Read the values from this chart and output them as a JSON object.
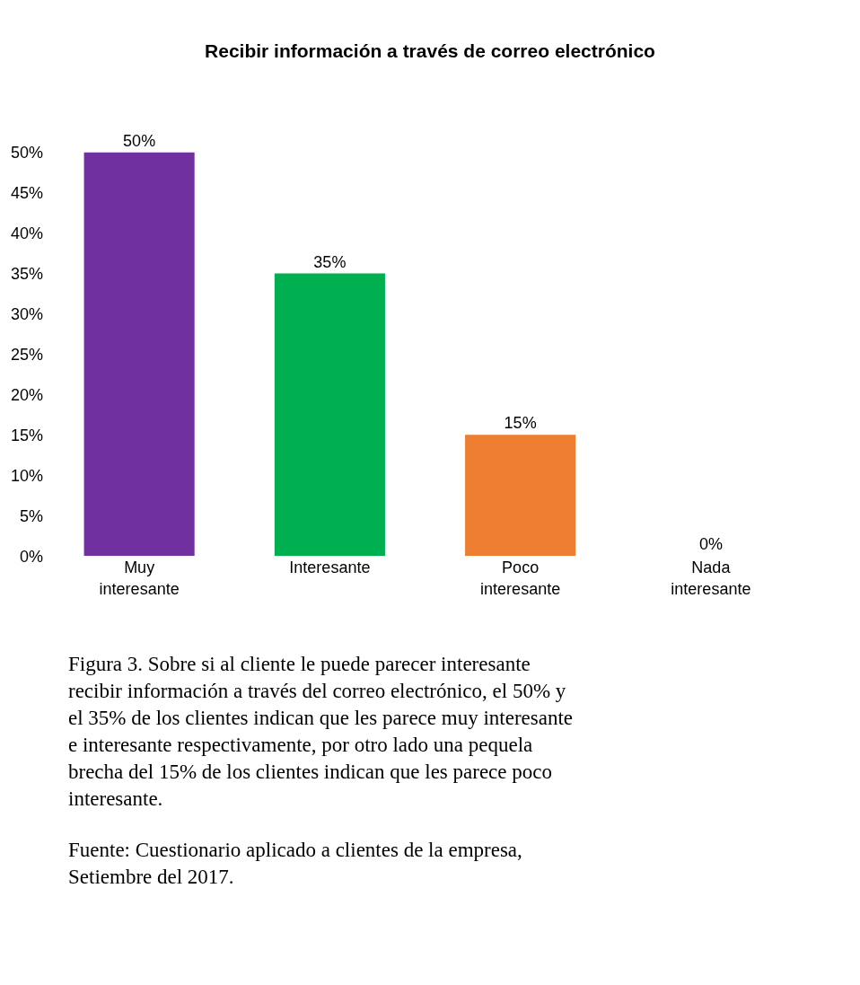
{
  "chart_data": {
    "type": "bar",
    "title": "Recibir información a través de correo electrónico",
    "categories": [
      "Muy interesante",
      "Interesante",
      "Poco interesante",
      "Nada interesante"
    ],
    "values": [
      50,
      35,
      15,
      0
    ],
    "colors": [
      "#7030a0",
      "#00b050",
      "#ed7d31",
      "#44749d"
    ],
    "value_labels": [
      "50%",
      "35%",
      "15%",
      "0%"
    ],
    "ylim": [
      0,
      50
    ],
    "yticks": [
      {
        "value": 0,
        "label": "0%"
      },
      {
        "value": 5,
        "label": "5%"
      },
      {
        "value": 10,
        "label": "10%"
      },
      {
        "value": 15,
        "label": "15%"
      },
      {
        "value": 20,
        "label": "20%"
      },
      {
        "value": 25,
        "label": "25%"
      },
      {
        "value": 30,
        "label": "30%"
      },
      {
        "value": 35,
        "label": "35%"
      },
      {
        "value": 40,
        "label": "40%"
      },
      {
        "value": 45,
        "label": "45%"
      },
      {
        "value": 50,
        "label": "50%"
      }
    ],
    "legend": false,
    "annotations": [
      "Figura 3. Sobre si al cliente le puede parecer interesante recibir información a través del correo electrónico, el 50% y el 35% de los clientes indican que les parece muy interesante e interesante respectivamente, por otro lado una pequela brecha del 15% de los clientes indican que les parece poco interesante.",
      "Fuente: Cuestionario aplicado a clientes de la empresa, Setiembre del 2017."
    ]
  }
}
